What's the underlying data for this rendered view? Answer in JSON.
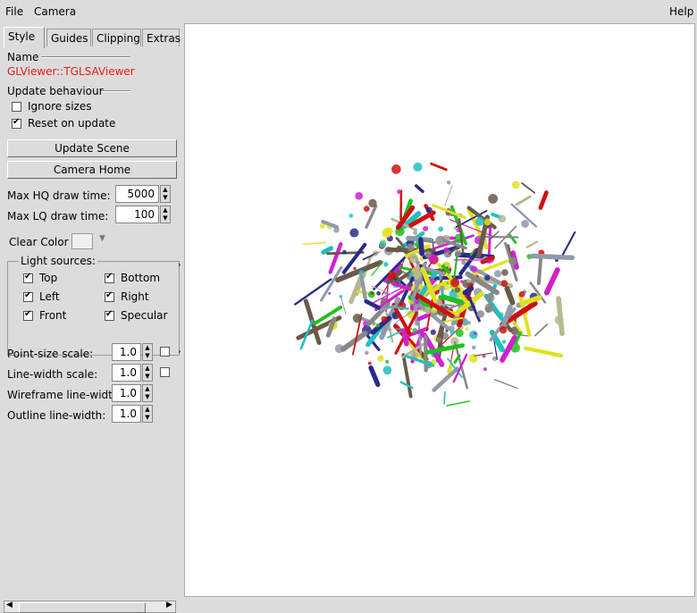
{
  "menubar": {
    "file": "File",
    "camera": "Camera",
    "help": "Help"
  },
  "tabs": [
    "Style",
    "Guides",
    "Clipping",
    "Extras"
  ],
  "name_section": {
    "label": "Name",
    "value": "GLViewer::TGLSAViewer"
  },
  "update_section": {
    "label": "Update behaviour",
    "ignore_sizes": {
      "label": "Ignore sizes",
      "checked": false
    },
    "reset_on_update": {
      "label": "Reset on update",
      "checked": true
    }
  },
  "buttons": {
    "update_scene": "Update Scene",
    "camera_home": "Camera Home"
  },
  "draw_time": {
    "hq_label": "Max HQ draw time:",
    "hq_value": "5000",
    "lq_label": "Max LQ draw time:",
    "lq_value": "100"
  },
  "clear_color": {
    "label": "Clear Color",
    "color": "#f0f0f0"
  },
  "light_sources": {
    "label": "Light sources:",
    "top": "Top",
    "bottom": "Bottom",
    "left": "Left",
    "right": "Right",
    "front": "Front",
    "specular": "Specular"
  },
  "scales": {
    "point_size_label": "Point-size scale:",
    "point_size_value": "1.0",
    "line_width_label": "Line-width scale:",
    "line_width_value": "1.0",
    "wireframe_label": "Wireframe line-width:",
    "wireframe_value": "1.0",
    "outline_label": "Outline line-width:",
    "outline_value": "1.0"
  },
  "scene": {
    "palette": [
      "#d01010",
      "#2a2a8a",
      "#b8b890",
      "#888",
      "#20c020",
      "#d020d0",
      "#20c0c0",
      "#6a5a4a",
      "#e0e020",
      "#909aaa"
    ]
  }
}
